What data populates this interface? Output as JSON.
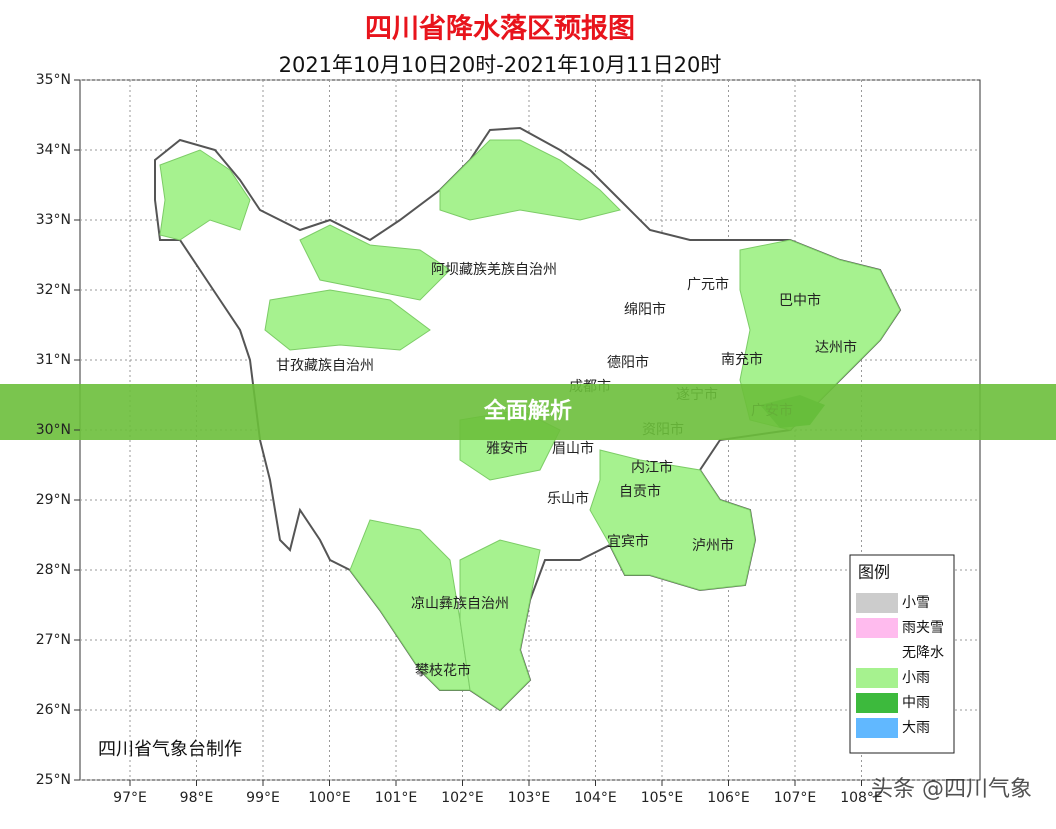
{
  "header": {
    "title": "四川省降水落区预报图",
    "subtitle": "2021年10月10日20时-2021年10月11日20时"
  },
  "map": {
    "lat_ticks": [
      {
        "value": 25,
        "label": "25°N"
      },
      {
        "value": 26,
        "label": "26°N"
      },
      {
        "value": 27,
        "label": "27°N"
      },
      {
        "value": 28,
        "label": "28°N"
      },
      {
        "value": 29,
        "label": "29°N"
      },
      {
        "value": 30,
        "label": "30°N"
      },
      {
        "value": 31,
        "label": "31°N"
      },
      {
        "value": 32,
        "label": "32°N"
      },
      {
        "value": 33,
        "label": "33°N"
      },
      {
        "value": 34,
        "label": "34°N"
      },
      {
        "value": 35,
        "label": "35°N"
      }
    ],
    "lon_ticks": [
      {
        "value": 97,
        "label": "97°E"
      },
      {
        "value": 98,
        "label": "98°E"
      },
      {
        "value": 99,
        "label": "99°E"
      },
      {
        "value": 100,
        "label": "100°E"
      },
      {
        "value": 101,
        "label": "101°E"
      },
      {
        "value": 102,
        "label": "102°E"
      },
      {
        "value": 103,
        "label": "103°E"
      },
      {
        "value": 104,
        "label": "104°E"
      },
      {
        "value": 105,
        "label": "105°E"
      },
      {
        "value": 106,
        "label": "106°E"
      },
      {
        "value": 107,
        "label": "107°E"
      },
      {
        "value": 108,
        "label": "108°E"
      }
    ],
    "regions": [
      "阿坝藏族羌族自治州",
      "甘孜藏族自治州",
      "绵阳市",
      "广元市",
      "巴中市",
      "达州市",
      "德阳市",
      "南充市",
      "成都市",
      "遂宁市",
      "广安市",
      "资阳市",
      "雅安市",
      "眉山市",
      "内江市",
      "自贡市",
      "乐山市",
      "宜宾市",
      "泸州市",
      "凉山彝族自治州",
      "攀枝花市"
    ],
    "credit": "四川省气象台制作"
  },
  "legend": {
    "title": "图例",
    "items": [
      {
        "label": "小雪",
        "color": "#cccccc"
      },
      {
        "label": "雨夹雪",
        "color": "#ffbbee"
      },
      {
        "label": "无降水",
        "color": "#ffffff"
      },
      {
        "label": "小雨",
        "color": "#a6f28f"
      },
      {
        "label": "中雨",
        "color": "#3dba3d"
      },
      {
        "label": "大雨",
        "color": "#61b8ff"
      }
    ]
  },
  "banner": "全面解析",
  "watermark": "头条 @四川气象"
}
